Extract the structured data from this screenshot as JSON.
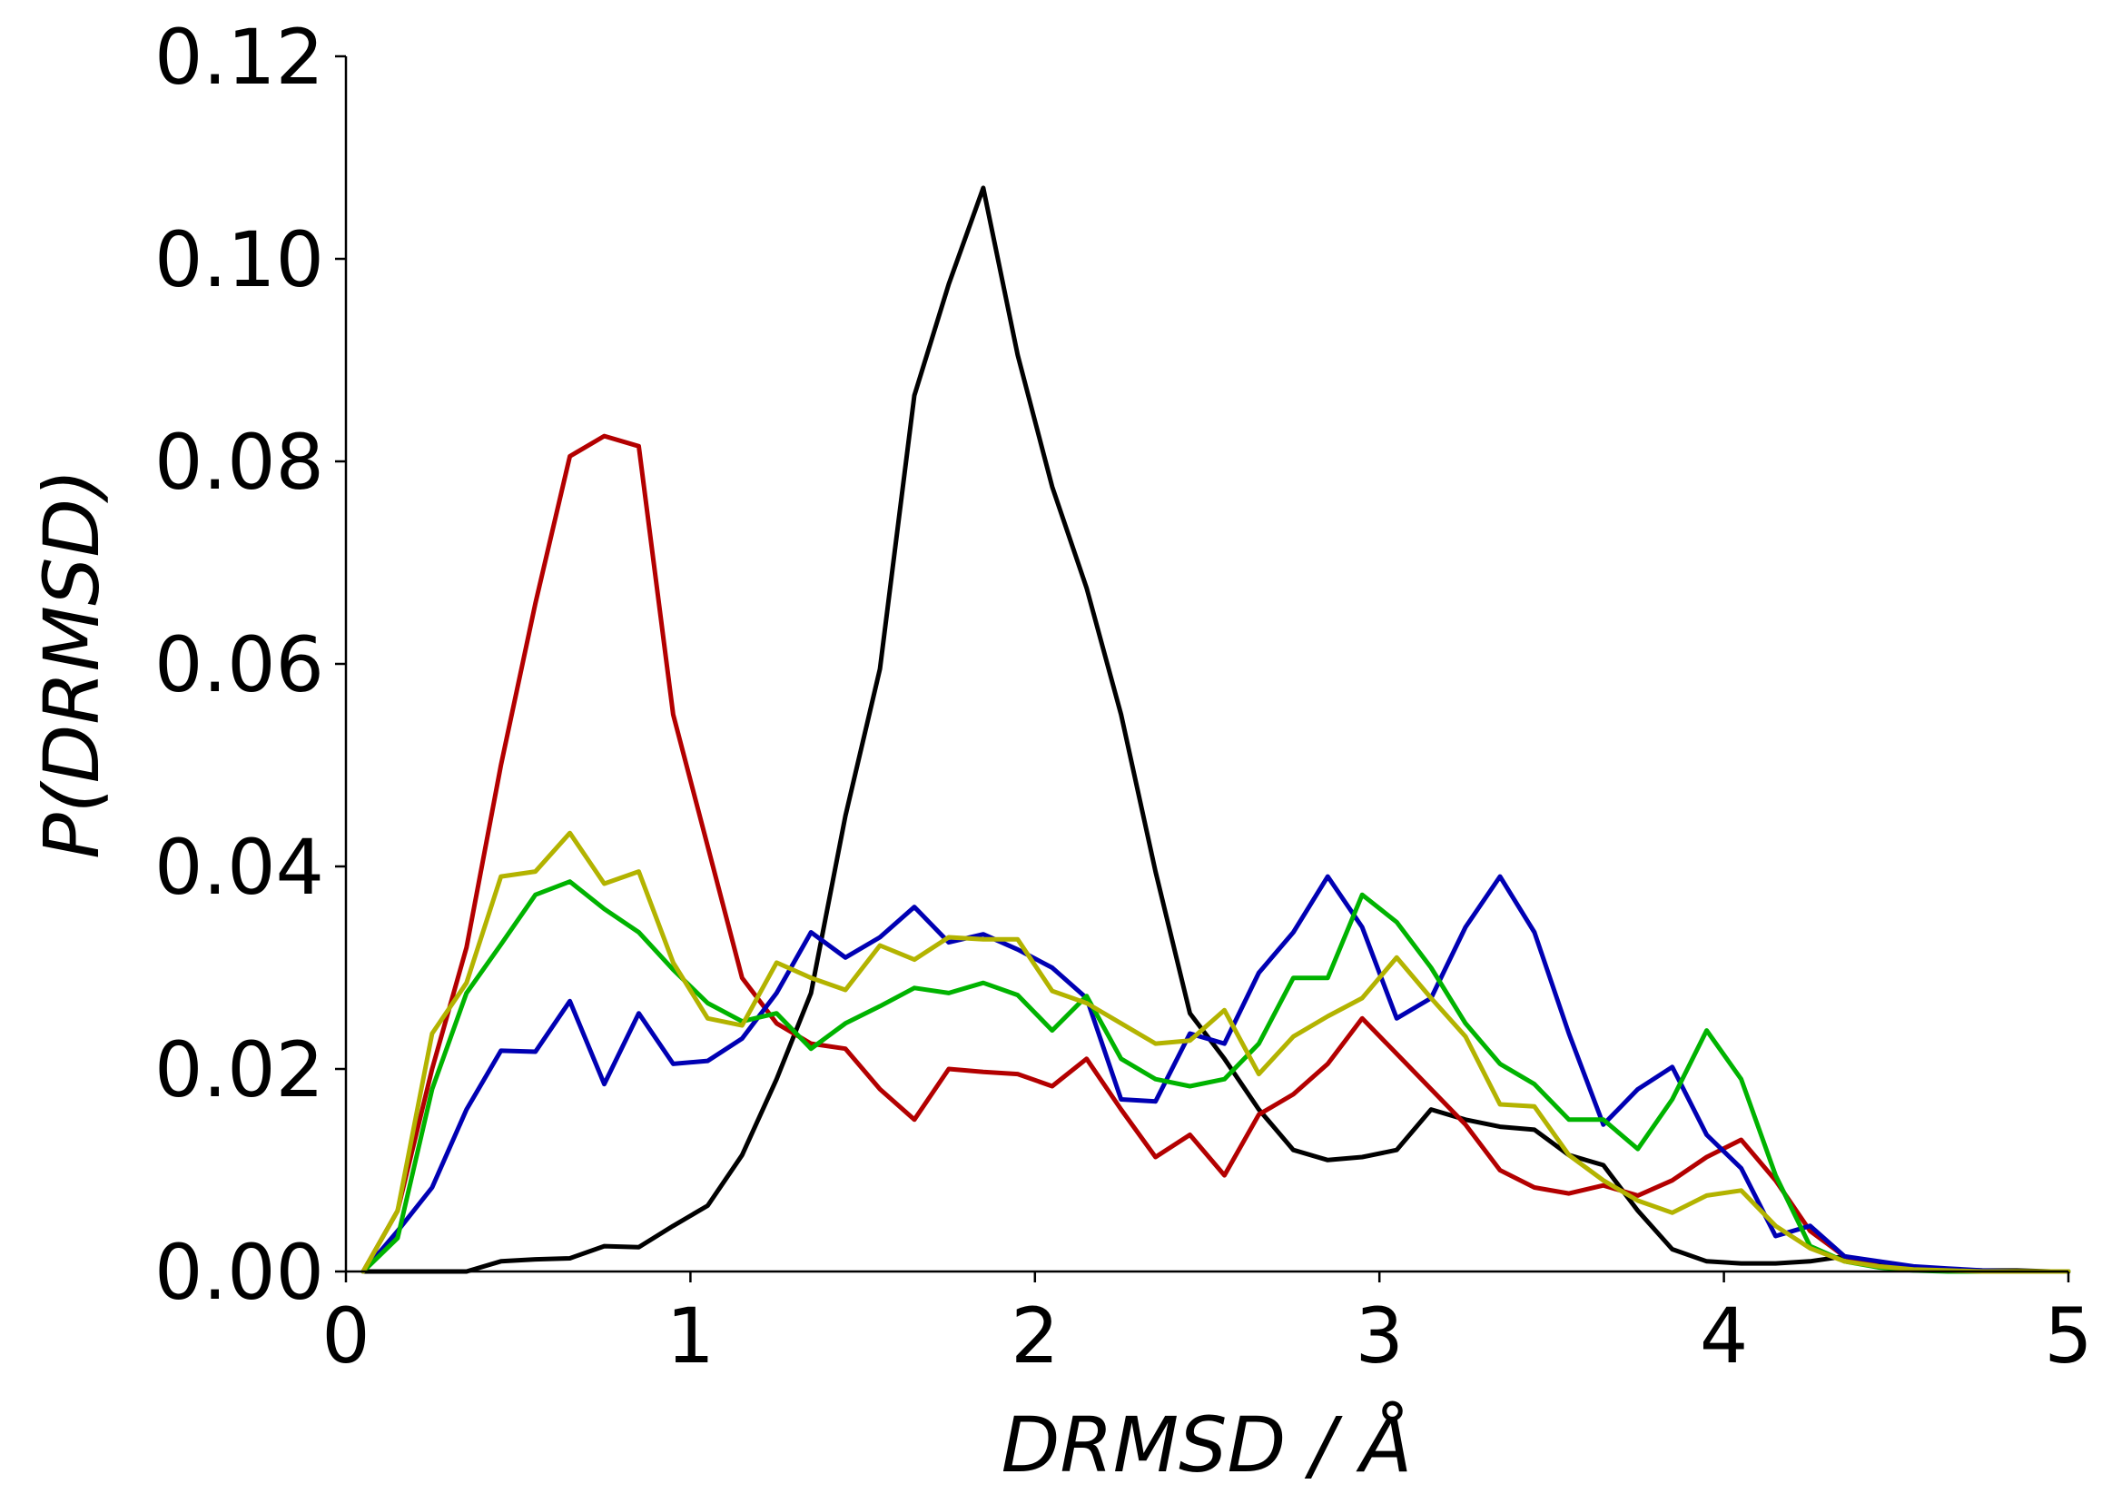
{
  "chart_data": {
    "type": "line",
    "title": "",
    "xlabel": "DRMSD / Å",
    "ylabel": "P(DRMSD)",
    "xlim": [
      0,
      5
    ],
    "ylim": [
      0,
      0.12
    ],
    "grid": false,
    "x_ticks": [
      "0",
      "1",
      "2",
      "3",
      "4",
      "5"
    ],
    "y_ticks": [
      "0.00",
      "0.02",
      "0.04",
      "0.06",
      "0.08",
      "0.10",
      "0.12"
    ],
    "x": [
      0.05,
      0.15,
      0.25,
      0.35,
      0.45,
      0.55,
      0.65,
      0.75,
      0.85,
      0.95,
      1.05,
      1.15,
      1.25,
      1.35,
      1.45,
      1.55,
      1.65,
      1.75,
      1.85,
      1.95,
      2.05,
      2.15,
      2.25,
      2.35,
      2.45,
      2.55,
      2.65,
      2.75,
      2.85,
      2.95,
      3.05,
      3.15,
      3.25,
      3.35,
      3.45,
      3.55,
      3.65,
      3.75,
      3.85,
      3.95,
      4.05,
      4.15,
      4.25,
      4.35,
      4.45,
      4.55,
      4.65,
      4.75,
      4.85,
      4.95,
      5.0
    ],
    "series": [
      {
        "name": "black",
        "color": "#000000",
        "values": [
          0,
          0,
          0,
          0,
          0.001,
          0.0012,
          0.0013,
          0.0025,
          0.0024,
          0.0045,
          0.0065,
          0.0115,
          0.019,
          0.0275,
          0.045,
          0.0595,
          0.0865,
          0.0975,
          0.107,
          0.0905,
          0.0775,
          0.0675,
          0.055,
          0.0395,
          0.0255,
          0.021,
          0.016,
          0.012,
          0.011,
          0.0113,
          0.012,
          0.016,
          0.015,
          0.0143,
          0.014,
          0.0115,
          0.0105,
          0.006,
          0.0022,
          0.001,
          0.0008,
          0.0008,
          0.001,
          0.0015,
          0.0006,
          0.0003,
          0.0002,
          0.0001,
          0.0001,
          0,
          0
        ]
      },
      {
        "name": "red",
        "color": "#b30000",
        "values": [
          0,
          0.006,
          0.02,
          0.032,
          0.05,
          0.066,
          0.0805,
          0.0825,
          0.0815,
          0.055,
          0.042,
          0.029,
          0.0245,
          0.0225,
          0.022,
          0.018,
          0.015,
          0.02,
          0.0197,
          0.0195,
          0.0183,
          0.021,
          0.016,
          0.0113,
          0.0135,
          0.0095,
          0.0155,
          0.0175,
          0.0205,
          0.025,
          0.0215,
          0.018,
          0.0145,
          0.01,
          0.0083,
          0.0077,
          0.0085,
          0.0075,
          0.009,
          0.0113,
          0.013,
          0.009,
          0.004,
          0.0015,
          0.0005,
          0.0002,
          0.0001,
          0,
          0,
          0,
          0
        ]
      },
      {
        "name": "blue",
        "color": "#0000b3",
        "values": [
          0,
          0.004,
          0.0083,
          0.016,
          0.0218,
          0.0217,
          0.0267,
          0.0185,
          0.0255,
          0.0205,
          0.0208,
          0.023,
          0.0275,
          0.0335,
          0.031,
          0.033,
          0.036,
          0.0325,
          0.0333,
          0.0318,
          0.03,
          0.027,
          0.017,
          0.0168,
          0.0235,
          0.0225,
          0.0295,
          0.0335,
          0.039,
          0.034,
          0.025,
          0.027,
          0.034,
          0.039,
          0.0335,
          0.0235,
          0.0145,
          0.018,
          0.0202,
          0.0135,
          0.0102,
          0.0035,
          0.0045,
          0.0015,
          0.001,
          0.0005,
          0.0003,
          0.0001,
          0,
          0,
          0
        ]
      },
      {
        "name": "green",
        "color": "#00b300",
        "values": [
          0,
          0.0033,
          0.018,
          0.0275,
          0.0323,
          0.0372,
          0.0385,
          0.0358,
          0.0335,
          0.0298,
          0.0265,
          0.0247,
          0.0255,
          0.022,
          0.0245,
          0.0262,
          0.028,
          0.0275,
          0.0285,
          0.0273,
          0.0238,
          0.0272,
          0.021,
          0.019,
          0.0183,
          0.019,
          0.0225,
          0.029,
          0.029,
          0.0372,
          0.0345,
          0.03,
          0.0245,
          0.0205,
          0.0185,
          0.015,
          0.015,
          0.0121,
          0.017,
          0.0238,
          0.019,
          0.0095,
          0.0025,
          0.001,
          0.0004,
          0.0001,
          0,
          0,
          0,
          0,
          0
        ]
      },
      {
        "name": "yellow",
        "color": "#b3b300",
        "values": [
          0,
          0.006,
          0.0235,
          0.0285,
          0.039,
          0.0395,
          0.0433,
          0.0383,
          0.0395,
          0.0305,
          0.025,
          0.0243,
          0.0305,
          0.029,
          0.0278,
          0.0322,
          0.0308,
          0.033,
          0.0328,
          0.0328,
          0.0277,
          0.0265,
          0.0245,
          0.0225,
          0.0228,
          0.0258,
          0.0195,
          0.0232,
          0.0252,
          0.027,
          0.031,
          0.027,
          0.0232,
          0.0165,
          0.0163,
          0.0115,
          0.009,
          0.007,
          0.0058,
          0.0075,
          0.008,
          0.0045,
          0.0023,
          0.001,
          0.0005,
          0.0002,
          0.0001,
          0,
          0,
          0,
          0
        ]
      }
    ]
  }
}
